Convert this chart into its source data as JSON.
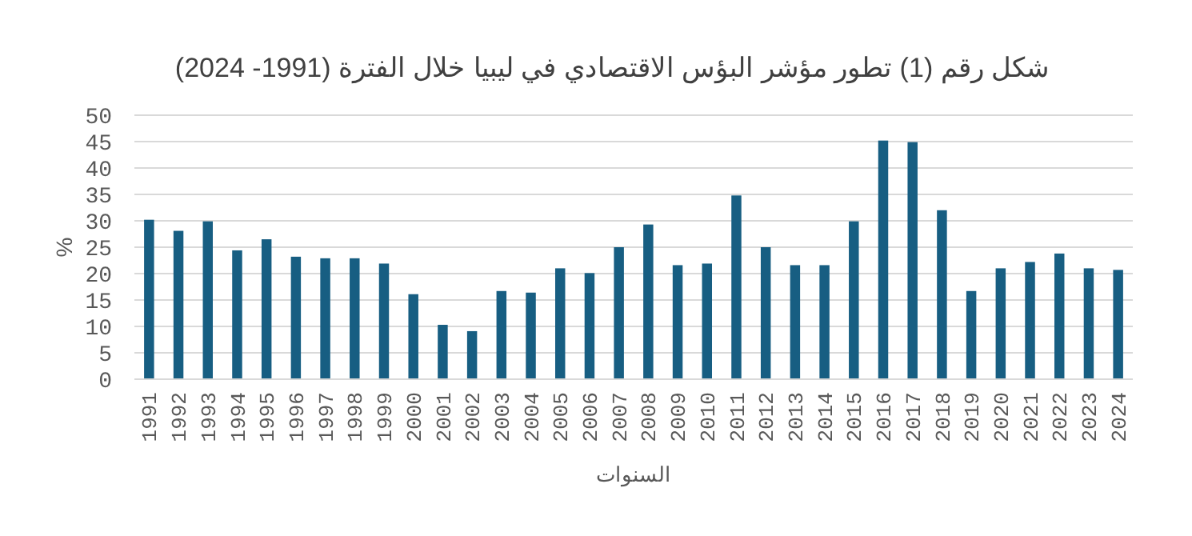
{
  "chart_data": {
    "type": "bar",
    "title": "شكل رقم (1) تطور مؤشر البؤس الاقتصادي في ليبيا خلال الفترة (1991- 2024)",
    "xlabel": "السنوات",
    "ylabel": "%",
    "categories": [
      "1991",
      "1992",
      "1993",
      "1994",
      "1995",
      "1996",
      "1997",
      "1998",
      "1999",
      "2000",
      "2001",
      "2002",
      "2003",
      "2004",
      "2005",
      "2006",
      "2007",
      "2008",
      "2009",
      "2010",
      "2011",
      "2012",
      "2013",
      "2014",
      "2015",
      "2016",
      "2017",
      "2018",
      "2019",
      "2020",
      "2021",
      "2022",
      "2023",
      "2024"
    ],
    "values": [
      30.2,
      28.1,
      29.9,
      24.4,
      26.5,
      23.2,
      22.9,
      22.9,
      21.9,
      16.1,
      10.3,
      9.1,
      16.7,
      16.4,
      21.0,
      20.1,
      25.0,
      29.3,
      21.6,
      21.9,
      34.8,
      25.0,
      21.6,
      21.6,
      29.9,
      45.2,
      44.9,
      32.0,
      16.7,
      21.0,
      22.2,
      23.8,
      21.0,
      20.7
    ],
    "color": "#175e82",
    "ylim": [
      0,
      50
    ],
    "yticks": [
      0,
      5,
      10,
      15,
      20,
      25,
      30,
      35,
      40,
      45,
      50
    ],
    "grid": "y"
  }
}
